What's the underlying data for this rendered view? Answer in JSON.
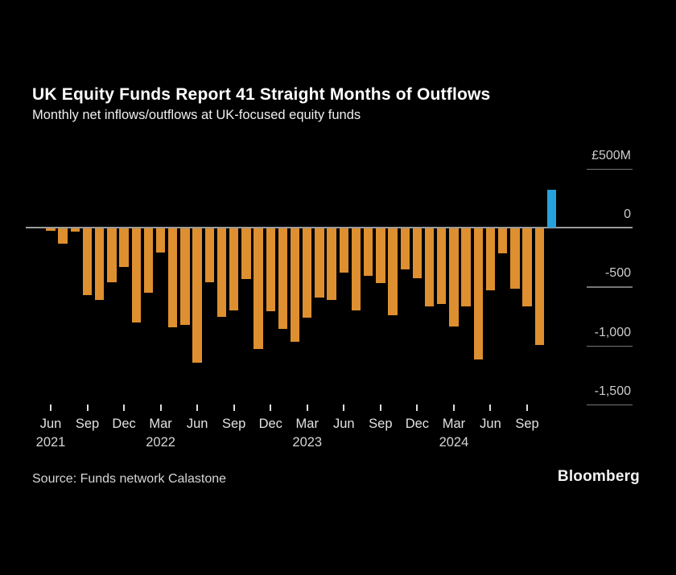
{
  "header": {
    "title": "UK Equity Funds Report 41 Straight Months of Outflows",
    "subtitle": "Monthly net inflows/outflows at UK-focused equity funds"
  },
  "footer": {
    "source": "Source: Funds network Calastone",
    "brand": "Bloomberg"
  },
  "chart_data": {
    "type": "bar",
    "title": "UK Equity Funds Report 41 Straight Months of Outflows",
    "subtitle": "Monthly net inflows/outflows at UK-focused equity funds",
    "unit": "GBP millions (£M)",
    "categories": [
      "Jun 2021",
      "Jul 2021",
      "Aug 2021",
      "Sep 2021",
      "Oct 2021",
      "Nov 2021",
      "Dec 2021",
      "Jan 2022",
      "Feb 2022",
      "Mar 2022",
      "Apr 2022",
      "May 2022",
      "Jun 2022",
      "Jul 2022",
      "Aug 2022",
      "Sep 2022",
      "Oct 2022",
      "Nov 2022",
      "Dec 2022",
      "Jan 2023",
      "Feb 2023",
      "Mar 2023",
      "Apr 2023",
      "May 2023",
      "Jun 2023",
      "Jul 2023",
      "Aug 2023",
      "Sep 2023",
      "Oct 2023",
      "Nov 2023",
      "Dec 2023",
      "Jan 2024",
      "Feb 2024",
      "Mar 2024",
      "Apr 2024",
      "May 2024",
      "Jun 2024",
      "Jul 2024",
      "Aug 2024",
      "Sep 2024",
      "Oct 2024",
      "Nov 2024"
    ],
    "values": [
      -20,
      -130,
      -25,
      -565,
      -610,
      -455,
      -330,
      -795,
      -545,
      -205,
      -840,
      -820,
      -1140,
      -455,
      -750,
      -695,
      -430,
      -1025,
      -705,
      -855,
      -965,
      -755,
      -590,
      -605,
      -375,
      -695,
      -400,
      -465,
      -740,
      -350,
      -420,
      -665,
      -640,
      -830,
      -660,
      -1110,
      -525,
      -210,
      -515,
      -665,
      -990,
      320
    ],
    "ylim": [
      -1500,
      500
    ],
    "y_ticks": [
      {
        "label": "£500M",
        "value": 500
      },
      {
        "label": "0",
        "value": 0
      },
      {
        "label": "-500",
        "value": -500
      },
      {
        "label": "-1,000",
        "value": -1000
      },
      {
        "label": "-1,500",
        "value": -1500
      }
    ],
    "x_ticks": [
      {
        "index": 0,
        "month": "Jun",
        "year": "2021"
      },
      {
        "index": 3,
        "month": "Sep"
      },
      {
        "index": 6,
        "month": "Dec"
      },
      {
        "index": 9,
        "month": "Mar",
        "year": "2022"
      },
      {
        "index": 12,
        "month": "Jun"
      },
      {
        "index": 15,
        "month": "Sep"
      },
      {
        "index": 18,
        "month": "Dec"
      },
      {
        "index": 21,
        "month": "Mar",
        "year": "2023"
      },
      {
        "index": 24,
        "month": "Jun"
      },
      {
        "index": 27,
        "month": "Sep"
      },
      {
        "index": 30,
        "month": "Dec"
      },
      {
        "index": 33,
        "month": "Mar",
        "year": "2024"
      },
      {
        "index": 36,
        "month": "Jun"
      },
      {
        "index": 39,
        "month": "Sep"
      }
    ],
    "colors": {
      "outflow": "#DE8F2F",
      "inflow": "#27A1DB"
    },
    "legend": "none",
    "grid": "short right-side underlines per y label; full-width zero axis line"
  }
}
